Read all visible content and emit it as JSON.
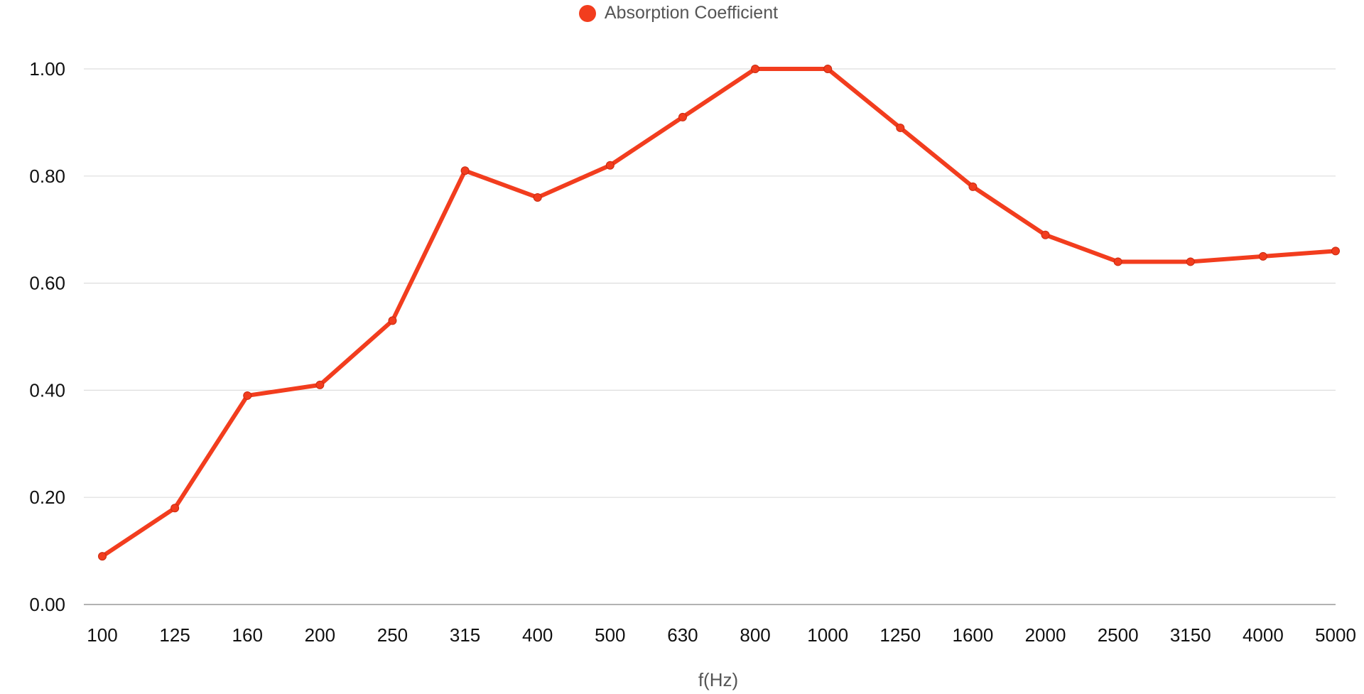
{
  "chart_data": {
    "type": "line",
    "categories": [
      "100",
      "125",
      "160",
      "200",
      "250",
      "315",
      "400",
      "500",
      "630",
      "800",
      "1000",
      "1250",
      "1600",
      "2000",
      "2500",
      "3150",
      "4000",
      "5000"
    ],
    "series": [
      {
        "name": "Absorption Coefficient",
        "values": [
          0.09,
          0.18,
          0.39,
          0.41,
          0.53,
          0.81,
          0.76,
          0.82,
          0.91,
          1.0,
          1.0,
          0.89,
          0.78,
          0.69,
          0.64,
          0.64,
          0.65,
          0.66
        ],
        "color": "#f23d1e"
      }
    ],
    "xlabel": "f(Hz)",
    "ylabel": "",
    "ylim": [
      0,
      1
    ],
    "yticks": [
      "0.00",
      "0.20",
      "0.40",
      "0.60",
      "0.80",
      "1.00"
    ],
    "ytick_values": [
      0,
      0.2,
      0.4,
      0.6,
      0.8,
      1.0
    ],
    "grid": true,
    "legend_position": "top-center",
    "colors": {
      "grid": "#dddddd",
      "axis": "#999999"
    }
  }
}
